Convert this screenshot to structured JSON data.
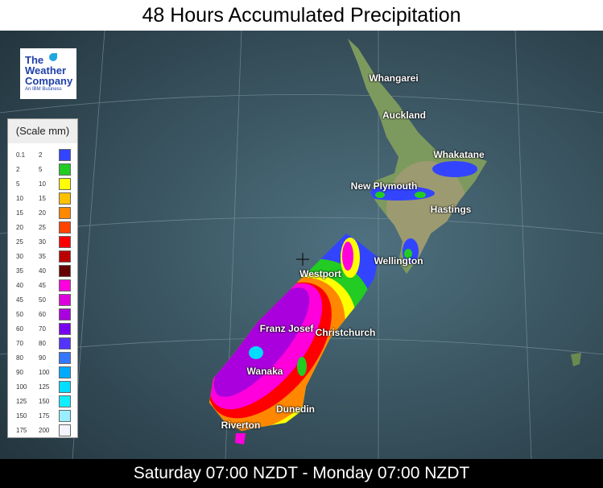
{
  "title": "48 Hours Accumulated Precipitation",
  "footer": "Saturday 07:00 NZDT - Monday 07:00 NZDT",
  "logo": {
    "line1": "The",
    "line2": "Weather",
    "line3": "Company",
    "sub": "An IBM Business"
  },
  "legend": {
    "title": "(Scale mm)",
    "rows": [
      {
        "from": "0.1",
        "to": "2",
        "color": "#3344ff"
      },
      {
        "from": "2",
        "to": "5",
        "color": "#22cc22"
      },
      {
        "from": "5",
        "to": "10",
        "color": "#ffff00"
      },
      {
        "from": "10",
        "to": "15",
        "color": "#ffc000"
      },
      {
        "from": "15",
        "to": "20",
        "color": "#ff8800"
      },
      {
        "from": "20",
        "to": "25",
        "color": "#ff4400"
      },
      {
        "from": "25",
        "to": "30",
        "color": "#ff0000"
      },
      {
        "from": "30",
        "to": "35",
        "color": "#bb0000"
      },
      {
        "from": "35",
        "to": "40",
        "color": "#660000"
      },
      {
        "from": "40",
        "to": "45",
        "color": "#ff00dd"
      },
      {
        "from": "45",
        "to": "50",
        "color": "#dd00dd"
      },
      {
        "from": "50",
        "to": "60",
        "color": "#aa00dd"
      },
      {
        "from": "60",
        "to": "70",
        "color": "#7700ee"
      },
      {
        "from": "70",
        "to": "80",
        "color": "#5533ff"
      },
      {
        "from": "80",
        "to": "90",
        "color": "#3377ff"
      },
      {
        "from": "90",
        "to": "100",
        "color": "#00aaff"
      },
      {
        "from": "100",
        "to": "125",
        "color": "#00ddff"
      },
      {
        "from": "125",
        "to": "150",
        "color": "#11eeff"
      },
      {
        "from": "150",
        "to": "175",
        "color": "#99eeff"
      },
      {
        "from": "175",
        "to": "200",
        "color": "#f4f4ff"
      }
    ]
  },
  "cities": [
    {
      "name": "Whangarei"
    },
    {
      "name": "Auckland"
    },
    {
      "name": "Whakatane"
    },
    {
      "name": "New Plymouth"
    },
    {
      "name": "Hastings"
    },
    {
      "name": "Wellington"
    },
    {
      "name": "Westport"
    },
    {
      "name": "Franz Josef"
    },
    {
      "name": "Christchurch"
    },
    {
      "name": "Wanaka"
    },
    {
      "name": "Dunedin"
    },
    {
      "name": "Riverton"
    }
  ]
}
